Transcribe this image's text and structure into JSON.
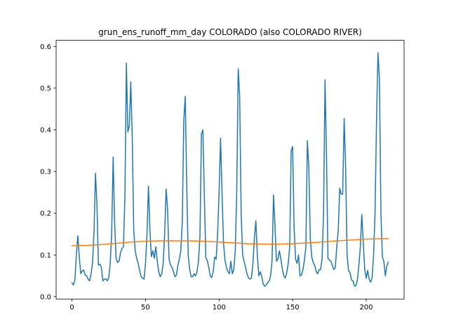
{
  "chart_data": {
    "type": "line",
    "title": "grun_ens_runoff_mm_day COLORADO (also COLORADO RIVER)",
    "xlabel": "",
    "ylabel": "",
    "xlim": [
      -10.75,
      225.75
    ],
    "ylim": [
      -0.0056,
      0.6146
    ],
    "xticks": [
      0,
      50,
      100,
      150,
      200
    ],
    "xtick_labels": [
      "0",
      "50",
      "100",
      "150",
      "200"
    ],
    "yticks": [
      0.0,
      0.1,
      0.2,
      0.3,
      0.4,
      0.5,
      0.6
    ],
    "ytick_labels": [
      "0.0",
      "0.1",
      "0.2",
      "0.3",
      "0.4",
      "0.5",
      "0.6"
    ],
    "grid": false,
    "series": [
      {
        "color": "#1f77b4",
        "x": [
          0,
          1,
          2,
          3,
          4,
          5,
          6,
          7,
          8,
          9,
          10,
          11,
          12,
          13,
          14,
          15,
          16,
          17,
          18,
          19,
          20,
          21,
          22,
          23,
          24,
          25,
          26,
          27,
          28,
          29,
          30,
          31,
          32,
          33,
          34,
          35,
          36,
          37,
          38,
          39,
          40,
          41,
          42,
          43,
          44,
          45,
          46,
          47,
          48,
          49,
          50,
          51,
          52,
          53,
          54,
          55,
          56,
          57,
          58,
          59,
          60,
          61,
          62,
          63,
          64,
          65,
          66,
          67,
          68,
          69,
          70,
          71,
          72,
          73,
          74,
          75,
          76,
          77,
          78,
          79,
          80,
          81,
          82,
          83,
          84,
          85,
          86,
          87,
          88,
          89,
          90,
          91,
          92,
          93,
          94,
          95,
          96,
          97,
          98,
          99,
          100,
          101,
          102,
          103,
          104,
          105,
          106,
          107,
          108,
          109,
          110,
          111,
          112,
          113,
          114,
          115,
          116,
          117,
          118,
          119,
          120,
          121,
          122,
          123,
          124,
          125,
          126,
          127,
          128,
          129,
          130,
          131,
          132,
          133,
          134,
          135,
          136,
          137,
          138,
          139,
          140,
          141,
          142,
          143,
          144,
          145,
          146,
          147,
          148,
          149,
          150,
          151,
          152,
          153,
          154,
          155,
          156,
          157,
          158,
          159,
          160,
          161,
          162,
          163,
          164,
          165,
          166,
          167,
          168,
          169,
          170,
          171,
          172,
          173,
          174,
          175,
          176,
          177,
          178,
          179,
          180,
          181,
          182,
          183,
          184,
          185,
          186,
          187,
          188,
          189,
          190,
          191,
          192,
          193,
          194,
          195,
          196,
          197,
          198,
          199,
          200,
          201,
          202,
          203,
          204,
          205,
          206,
          207,
          208,
          209,
          210,
          211,
          212,
          213,
          214,
          215
        ],
        "values": [
          0.033,
          0.028,
          0.04,
          0.1,
          0.146,
          0.095,
          0.055,
          0.062,
          0.064,
          0.052,
          0.05,
          0.042,
          0.038,
          0.055,
          0.082,
          0.155,
          0.296,
          0.22,
          0.076,
          0.078,
          0.07,
          0.038,
          0.042,
          0.043,
          0.038,
          0.045,
          0.08,
          0.15,
          0.335,
          0.18,
          0.092,
          0.082,
          0.085,
          0.105,
          0.115,
          0.12,
          0.24,
          0.56,
          0.395,
          0.41,
          0.515,
          0.38,
          0.16,
          0.11,
          0.092,
          0.08,
          0.063,
          0.048,
          0.045,
          0.042,
          0.08,
          0.15,
          0.265,
          0.16,
          0.096,
          0.11,
          0.092,
          0.12,
          0.085,
          0.06,
          0.048,
          0.054,
          0.08,
          0.15,
          0.258,
          0.21,
          0.09,
          0.076,
          0.07,
          0.06,
          0.048,
          0.052,
          0.075,
          0.09,
          0.11,
          0.18,
          0.42,
          0.48,
          0.27,
          0.1,
          0.066,
          0.048,
          0.048,
          0.055,
          0.05,
          0.06,
          0.085,
          0.145,
          0.39,
          0.4,
          0.24,
          0.093,
          0.087,
          0.07,
          0.05,
          0.046,
          0.06,
          0.095,
          0.09,
          0.15,
          0.25,
          0.38,
          0.25,
          0.13,
          0.088,
          0.07,
          0.06,
          0.055,
          0.085,
          0.055,
          0.065,
          0.11,
          0.25,
          0.546,
          0.48,
          0.2,
          0.1,
          0.085,
          0.07,
          0.055,
          0.045,
          0.042,
          0.045,
          0.08,
          0.14,
          0.182,
          0.1,
          0.05,
          0.06,
          0.048,
          0.03,
          0.025,
          0.028,
          0.034,
          0.037,
          0.05,
          0.085,
          0.244,
          0.17,
          0.085,
          0.09,
          0.11,
          0.09,
          0.066,
          0.05,
          0.045,
          0.058,
          0.08,
          0.12,
          0.35,
          0.36,
          0.165,
          0.09,
          0.08,
          0.1,
          0.05,
          0.052,
          0.065,
          0.087,
          0.12,
          0.374,
          0.31,
          0.14,
          0.095,
          0.082,
          0.075,
          0.06,
          0.055,
          0.065,
          0.065,
          0.09,
          0.2,
          0.52,
          0.34,
          0.092,
          0.088,
          0.085,
          0.075,
          0.065,
          0.07,
          0.12,
          0.16,
          0.26,
          0.246,
          0.246,
          0.427,
          0.31,
          0.1,
          0.062,
          0.058,
          0.04,
          0.038,
          0.026,
          0.026,
          0.04,
          0.075,
          0.12,
          0.197,
          0.13,
          0.065,
          0.044,
          0.063,
          0.042,
          0.035,
          0.045,
          0.1,
          0.2,
          0.42,
          0.585,
          0.52,
          0.2,
          0.095,
          0.085,
          0.05,
          0.073,
          0.083
        ]
      },
      {
        "color": "#ff7f0e",
        "x": [
          0,
          10,
          20,
          30,
          40,
          50,
          60,
          70,
          80,
          90,
          100,
          110,
          120,
          130,
          140,
          150,
          160,
          170,
          180,
          190,
          200,
          210,
          215
        ],
        "values": [
          0.122,
          0.123,
          0.125,
          0.128,
          0.131,
          0.133,
          0.134,
          0.134,
          0.134,
          0.133,
          0.131,
          0.129,
          0.127,
          0.126,
          0.126,
          0.127,
          0.129,
          0.131,
          0.134,
          0.136,
          0.138,
          0.139,
          0.139
        ]
      }
    ]
  }
}
